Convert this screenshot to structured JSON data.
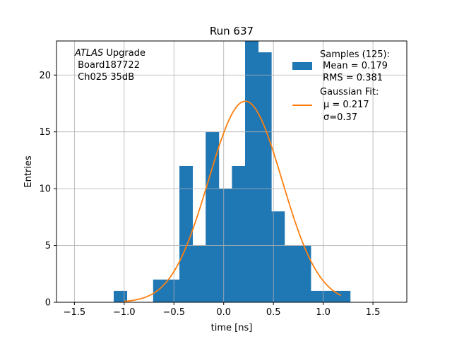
{
  "chart_data": {
    "type": "bar",
    "title": "Run 637",
    "xlabel": "time [ns]",
    "ylabel": "Entries",
    "xlim": [
      -1.68,
      1.84
    ],
    "ylim": [
      0,
      23.0
    ],
    "xticks": [
      -1.5,
      -1.0,
      -0.5,
      0.0,
      0.5,
      1.0,
      1.5
    ],
    "xtick_labels": [
      "−1.5",
      "−1.0",
      "−0.5",
      "0.0",
      "0.5",
      "1.0",
      "1.5"
    ],
    "yticks": [
      0,
      5,
      10,
      15,
      20
    ],
    "ytick_labels": [
      "0",
      "5",
      "10",
      "15",
      "20"
    ],
    "grid": true,
    "histogram": {
      "name": "Samples",
      "color": "#1f77b4",
      "bin_edges": [
        -1.105,
        -0.973,
        -0.841,
        -0.709,
        -0.577,
        -0.445,
        -0.313,
        -0.181,
        -0.049,
        0.083,
        0.215,
        0.347,
        0.479,
        0.611,
        0.743,
        0.875,
        1.007,
        1.139,
        1.271
      ],
      "counts": [
        1,
        0,
        0,
        2,
        2,
        12,
        5,
        15,
        10,
        12,
        23,
        22,
        8,
        5,
        5,
        1,
        1,
        1
      ]
    },
    "fit": {
      "name": "Gaussian Fit",
      "color": "#ff7f0e",
      "mu": 0.217,
      "sigma": 0.37,
      "amplitude": 17.7,
      "x_range": [
        -1.0,
        1.18
      ]
    },
    "legend": {
      "position": "upper-right",
      "samples_lines": [
        "Samples (125):",
        " Mean = 0.179",
        " RMS = 0.381"
      ],
      "fit_lines": [
        "Gaussian Fit:",
        "μ = 0.217",
        "σ=0.37"
      ]
    },
    "annotation": {
      "atlas": "ATLAS",
      "upgrade": " Upgrade",
      "board": " Board187722",
      "channel": " Ch025 35dB"
    }
  }
}
